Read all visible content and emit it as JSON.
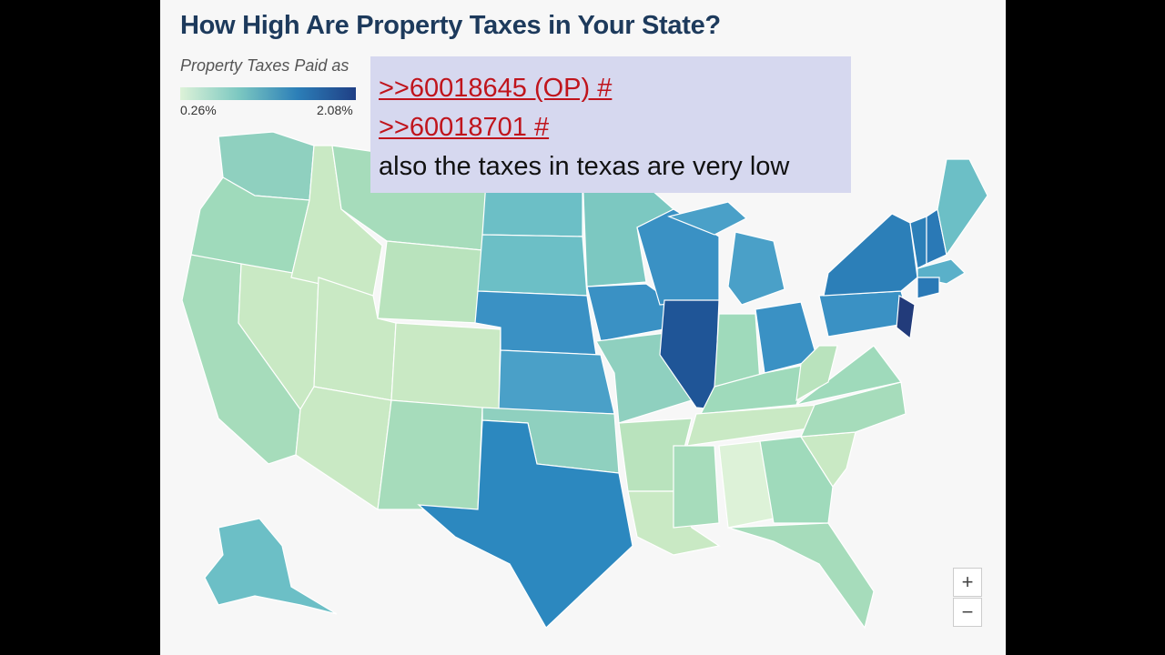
{
  "header": {
    "title": "How High Are Property Taxes in Your State?",
    "subtitle": "Property Taxes Paid as"
  },
  "legend": {
    "min_label": "0.26%",
    "max_label": "2.08%"
  },
  "overlay": {
    "links": [
      ">>60018645 (OP) #",
      ">>60018701 #"
    ],
    "text": "also the taxes in texas are very low"
  },
  "zoom": {
    "in": "+",
    "out": "−"
  }
}
